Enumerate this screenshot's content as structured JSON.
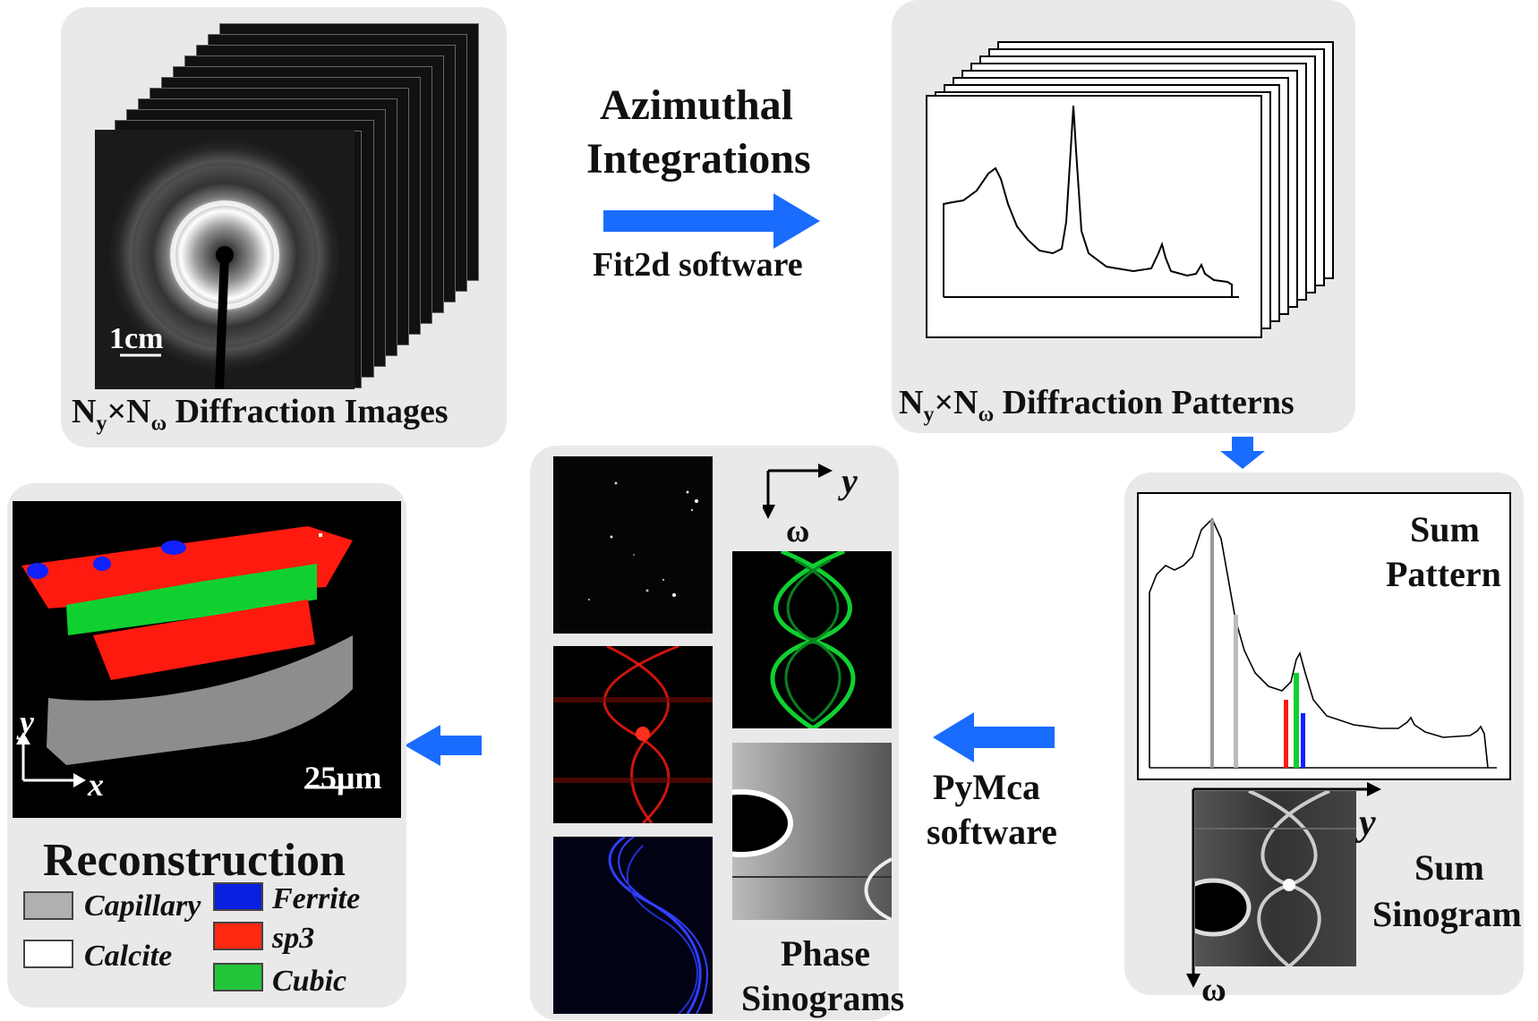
{
  "diffraction_images": {
    "scale_bar": "1cm",
    "caption": {
      "n1": "N",
      "s1": "y",
      "times": "×",
      "n2": "N",
      "s2": "ω",
      "rest": " Diffraction Images"
    }
  },
  "azimuthal": {
    "title_line1": "Azimuthal",
    "title_line2": "Integrations",
    "subtitle": "Fit2d software"
  },
  "diffraction_patterns": {
    "caption": {
      "n1": "N",
      "s1": "y",
      "times": "×",
      "n2": "N",
      "s2": "ω",
      "rest": " Diffraction Patterns"
    }
  },
  "sum_panel": {
    "pattern_line1": "Sum",
    "pattern_line2": "Pattern",
    "sinogram_line1": "Sum",
    "sinogram_line2": "Sinogram",
    "axis_y": "y",
    "axis_omega": "ω"
  },
  "pymca": {
    "line1": "PyMca",
    "line2": "software"
  },
  "phase_sinograms": {
    "axis_y": "y",
    "axis_omega": "ω",
    "caption_line1": "Phase",
    "caption_line2": "Sinograms"
  },
  "reconstruction": {
    "title": "Reconstruction",
    "scale_bar": "25μm",
    "axis_x": "x",
    "axis_y": "y",
    "legend": [
      {
        "label": "Capillary",
        "color": "#b0b0b0"
      },
      {
        "label": "Calcite",
        "color": "#ffffff"
      },
      {
        "label": "Ferrite",
        "color": "#0a1fe0"
      },
      {
        "label": "sp3",
        "color": "#ff2a10"
      },
      {
        "label": "Cubic",
        "color": "#22c43a"
      }
    ]
  },
  "colors": {
    "arrow": "#1a6cff",
    "panel_bg": "#e9e9e9",
    "red_phase": "#ff1a10",
    "green_phase": "#10d030",
    "blue_phase": "#1020ff"
  }
}
